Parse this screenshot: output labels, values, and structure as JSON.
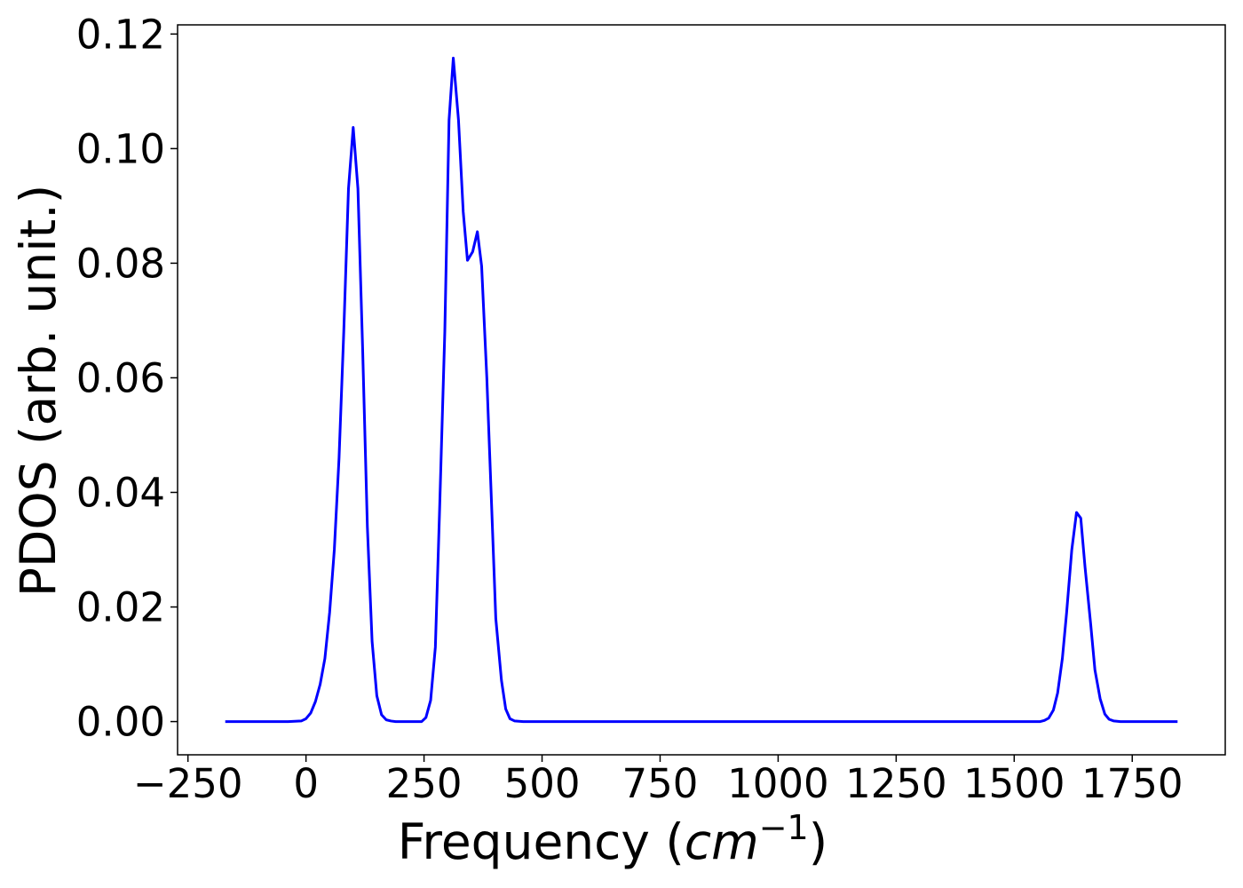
{
  "chart_data": {
    "type": "line",
    "x_label": [
      "Frequency (",
      "cm",
      "−1",
      ")"
    ],
    "y_label": "PDOS (arb. unit.)",
    "xlim": [
      -272,
      1947
    ],
    "ylim": [
      -0.0058,
      0.1216
    ],
    "xticks": [
      {
        "value": -250,
        "label": "−250"
      },
      0,
      250,
      500,
      750,
      1000,
      1250,
      1500,
      1750
    ],
    "yticks": [
      {
        "value": 0,
        "label": "0.00"
      },
      0.02,
      0.04,
      0.06,
      0.08,
      {
        "value": 0.1,
        "label": "0.10"
      },
      0.12
    ],
    "series": [
      {
        "color": "#0000ff",
        "x": [
          -171,
          -38,
          -10,
          0,
          10,
          20,
          30,
          40,
          50,
          60,
          70,
          80,
          90,
          100,
          110,
          120,
          130,
          140,
          150,
          160,
          170,
          180,
          190,
          245,
          254,
          264,
          274,
          283,
          294,
          303,
          312,
          323,
          333,
          342,
          353,
          363,
          372,
          383,
          393,
          402,
          414,
          423,
          432,
          442,
          460,
          1555,
          1564,
          1573,
          1583,
          1592,
          1602,
          1611,
          1622,
          1632,
          1641,
          1650,
          1662,
          1671,
          1682,
          1692,
          1701,
          1711,
          1725,
          1846
        ],
        "values": [
          0,
          0,
          0.0001,
          0.0005,
          0.0015,
          0.0035,
          0.0065,
          0.011,
          0.019,
          0.03,
          0.046,
          0.068,
          0.093,
          0.1037,
          0.093,
          0.065,
          0.034,
          0.014,
          0.0045,
          0.0012,
          0.0003,
          0.0001,
          0,
          0,
          0.0007,
          0.0037,
          0.013,
          0.037,
          0.068,
          0.105,
          0.1158,
          0.105,
          0.089,
          0.0805,
          0.082,
          0.0855,
          0.0795,
          0.06,
          0.038,
          0.018,
          0.0072,
          0.0022,
          0.0005,
          0.0001,
          0,
          0,
          0.0002,
          0.0006,
          0.002,
          0.005,
          0.011,
          0.019,
          0.03,
          0.0365,
          0.0355,
          0.027,
          0.017,
          0.009,
          0.004,
          0.0013,
          0.0004,
          0.0001,
          0,
          0
        ]
      }
    ]
  }
}
